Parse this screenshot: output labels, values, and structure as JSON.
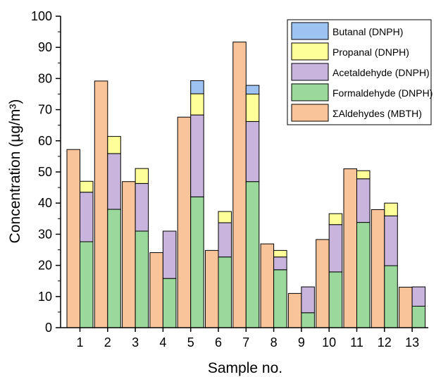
{
  "chart_data": {
    "type": "bar",
    "layout": "grouped-stacked",
    "xlabel": "Sample no.",
    "ylabel": "Concentration (µg/m³)",
    "ylim": [
      0,
      100
    ],
    "yticks": [
      0,
      10,
      20,
      30,
      40,
      50,
      60,
      70,
      80,
      90,
      100
    ],
    "grid": false,
    "legend_position": "top-right",
    "categories": [
      "1",
      "2",
      "3",
      "4",
      "5",
      "6",
      "7",
      "8",
      "9",
      "10",
      "11",
      "12",
      "13"
    ],
    "series": [
      {
        "name": "ΣAldehydes (MBTH)",
        "stack": "MBTH",
        "color": "#F9C49A",
        "values": [
          57.2,
          79.2,
          46.9,
          24.1,
          67.6,
          24.8,
          91.7,
          26.9,
          11.0,
          28.3,
          51.0,
          37.9,
          13.0
        ]
      },
      {
        "name": "Formaldehyde (DNPH)",
        "stack": "DNPH",
        "color": "#9BD89B",
        "values": [
          27.6,
          38.0,
          31.0,
          15.8,
          42.0,
          22.7,
          46.9,
          18.6,
          4.8,
          17.9,
          33.8,
          19.9,
          6.9
        ]
      },
      {
        "name": "Acetaldehyde (DNPH)",
        "stack": "DNPH",
        "color": "#C8B4DC",
        "values": [
          15.9,
          17.9,
          15.3,
          15.2,
          26.3,
          11.0,
          19.3,
          4.1,
          8.3,
          15.2,
          14.0,
          16.0,
          6.2
        ]
      },
      {
        "name": "Propanal (DNPH)",
        "stack": "DNPH",
        "color": "#FFFF99",
        "values": [
          3.5,
          5.5,
          4.8,
          0,
          6.8,
          3.6,
          8.8,
          2.1,
          0,
          3.5,
          2.6,
          4.1,
          0
        ]
      },
      {
        "name": "Butanal (DNPH)",
        "stack": "DNPH",
        "color": "#9EC3F2",
        "values": [
          0,
          0,
          0,
          0,
          4.2,
          0,
          2.8,
          0,
          0,
          0,
          0,
          0,
          0
        ]
      }
    ],
    "legend_order": [
      "Butanal (DNPH)",
      "Propanal (DNPH)",
      "Acetaldehyde (DNPH)",
      "Formaldehyde (DNPH)",
      "ΣAldehydes (MBTH)"
    ]
  }
}
